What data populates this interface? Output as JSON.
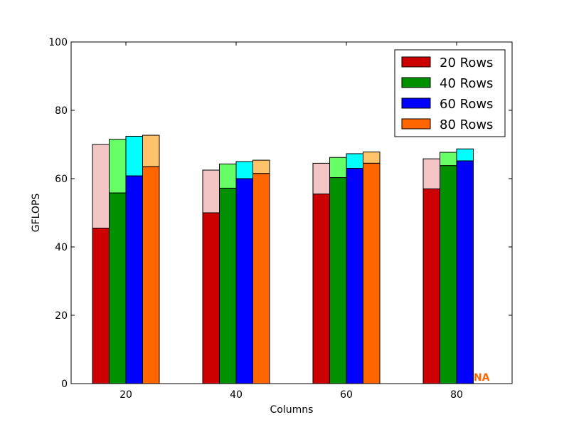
{
  "chart_data": {
    "type": "bar",
    "xlabel": "Columns",
    "ylabel": "GFLOPS",
    "ylim": [
      0,
      100
    ],
    "yticks": [
      "0",
      "20",
      "40",
      "60",
      "80",
      "100"
    ],
    "categories": [
      "20",
      "40",
      "60",
      "80"
    ],
    "grid": false,
    "legend_placement": "top-right",
    "series": [
      {
        "name": "20 Rows",
        "values": [
          45.5,
          50.0,
          55.5,
          57.0
        ],
        "upper_values": [
          70.0,
          62.5,
          64.5,
          65.8
        ],
        "color": "#cc0000",
        "light_color": "#f2c4c4"
      },
      {
        "name": "40 Rows",
        "values": [
          55.8,
          57.2,
          60.3,
          63.8
        ],
        "upper_values": [
          71.5,
          64.3,
          66.2,
          67.7
        ],
        "color": "#009000",
        "light_color": "#66ff66"
      },
      {
        "name": "60 Rows",
        "values": [
          60.8,
          60.0,
          63.0,
          65.2
        ],
        "upper_values": [
          72.4,
          65.0,
          67.3,
          68.7
        ],
        "color": "#0000ff",
        "light_color": "#00ffff"
      },
      {
        "name": "80 Rows",
        "values": [
          63.5,
          61.5,
          64.5,
          null
        ],
        "upper_values": [
          72.7,
          65.4,
          67.8,
          null
        ],
        "color": "#ff6600",
        "light_color": "#ffc36b"
      }
    ],
    "annotations": [
      {
        "text": "NA",
        "category": "80",
        "series": "80 Rows",
        "color": "#ff6600"
      }
    ]
  }
}
